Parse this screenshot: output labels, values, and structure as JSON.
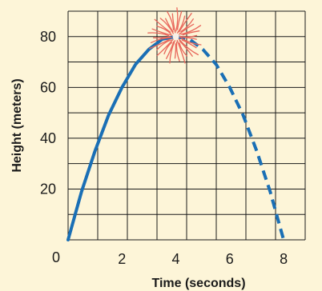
{
  "chart_data": {
    "type": "line",
    "title": "",
    "xlabel": "Time (seconds)",
    "ylabel": "Height (meters)",
    "xlim": [
      0,
      8.8
    ],
    "ylim": [
      0,
      90
    ],
    "x_ticks": [
      0,
      2,
      4,
      6,
      8
    ],
    "y_ticks": [
      20,
      40,
      60,
      80
    ],
    "x_tick_labels": [
      "0",
      "2",
      "4",
      "6",
      "8"
    ],
    "y_tick_labels": [
      "20",
      "40",
      "60",
      "80"
    ],
    "grid": true,
    "legend": "none",
    "series": [
      {
        "style": "solid",
        "color": "#1a6fb5",
        "x": [
          0,
          0.5,
          1,
          1.5,
          2,
          2.5,
          3,
          3.5,
          4
        ],
        "y": [
          0,
          19,
          35,
          49,
          60,
          69,
          75,
          79,
          80
        ]
      },
      {
        "style": "dashed",
        "color": "#1a6fb5",
        "x": [
          4,
          4.5,
          5,
          5.5,
          6,
          6.5,
          7,
          7.5,
          8
        ],
        "y": [
          80,
          79,
          75,
          69,
          60,
          49,
          35,
          19,
          0
        ]
      }
    ],
    "annotations": [
      {
        "type": "firework-burst",
        "x": 4,
        "y": 80,
        "color": "#e8665a"
      }
    ]
  },
  "colors": {
    "background": "#fdf5d8",
    "grid": "#1a1a1a",
    "curve": "#1a6fb5",
    "firework": "#e8665a"
  }
}
